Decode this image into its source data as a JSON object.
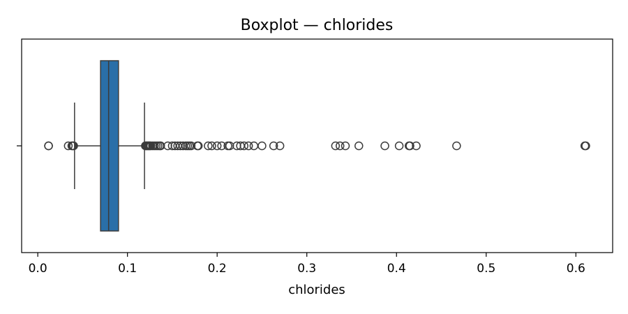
{
  "chart_data": {
    "type": "box",
    "orientation": "horizontal",
    "title": "Boxplot — chlorides",
    "xlabel": "chlorides",
    "ylabel": "",
    "xlim": [
      -0.018,
      0.641
    ],
    "xticks": [
      0.0,
      0.1,
      0.2,
      0.3,
      0.4,
      0.5,
      0.6
    ],
    "xtick_labels": [
      "0.0",
      "0.1",
      "0.2",
      "0.3",
      "0.4",
      "0.5",
      "0.6"
    ],
    "grid": false,
    "box": {
      "whisker_low": 0.041,
      "q1": 0.07,
      "median": 0.079,
      "q3": 0.09,
      "whisker_high": 0.119,
      "color": "#2a6fa8"
    },
    "outliers": [
      0.012,
      0.012,
      0.034,
      0.038,
      0.039,
      0.04,
      0.12,
      0.121,
      0.122,
      0.123,
      0.124,
      0.125,
      0.126,
      0.128,
      0.13,
      0.132,
      0.134,
      0.136,
      0.137,
      0.145,
      0.15,
      0.153,
      0.156,
      0.159,
      0.162,
      0.165,
      0.167,
      0.169,
      0.171,
      0.178,
      0.179,
      0.19,
      0.194,
      0.2,
      0.205,
      0.212,
      0.214,
      0.222,
      0.226,
      0.23,
      0.235,
      0.241,
      0.25,
      0.263,
      0.27,
      0.332,
      0.337,
      0.343,
      0.358,
      0.387,
      0.403,
      0.414,
      0.415,
      0.422,
      0.467,
      0.61,
      0.611
    ],
    "colors": {
      "box_fill": "#2a6fa8",
      "line": "#3b3b3b",
      "outlier_edge": "#3b3b3b"
    }
  }
}
